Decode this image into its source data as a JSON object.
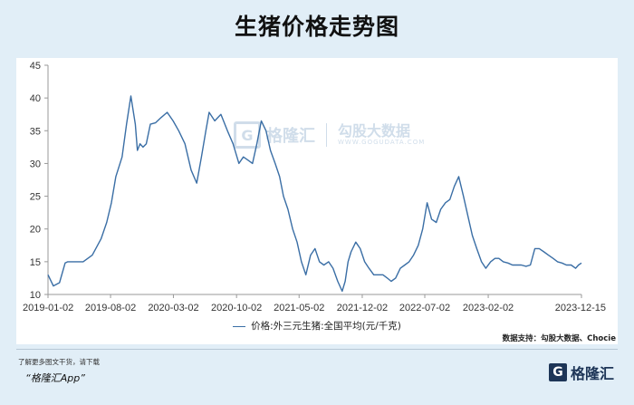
{
  "title": "生猪价格走势图",
  "watermark": {
    "brand": "格隆汇",
    "source_name": "勾股大数据",
    "source_url": "WWW.GOGUDATA.COM"
  },
  "legend_label": "价格:外三元生猪:全国平均(元/千克)",
  "source_note": "数据支持：勾股大数据、Chocie",
  "footer": {
    "line1": "了解更多图文干货，请下载",
    "line2": "“格隆汇App”",
    "logo_text": "格隆汇"
  },
  "colors": {
    "line": "#3a6ea5",
    "background": "#e1eef7",
    "panel": "#ffffff"
  },
  "chart_data": {
    "type": "line",
    "title": "生猪价格走势图",
    "xlabel": "",
    "ylabel": "",
    "x_ticks": [
      "2019-01-02",
      "2019-08-02",
      "2020-03-02",
      "2020-10-02",
      "2021-05-02",
      "2021-12-02",
      "2022-07-02",
      "2023-02-02",
      "2023-12-15"
    ],
    "y_ticks": [
      10,
      15,
      20,
      25,
      30,
      35,
      40,
      45
    ],
    "ylim": [
      10,
      45
    ],
    "grid": false,
    "series": [
      {
        "name": "价格:外三元生猪:全国平均(元/千克)",
        "x": [
          "2019-01-02",
          "2019-01-20",
          "2019-02-10",
          "2019-03-01",
          "2019-03-10",
          "2019-04-01",
          "2019-05-01",
          "2019-06-01",
          "2019-07-01",
          "2019-07-20",
          "2019-08-05",
          "2019-08-20",
          "2019-09-10",
          "2019-09-25",
          "2019-10-10",
          "2019-10-25",
          "2019-11-01",
          "2019-11-10",
          "2019-11-20",
          "2019-12-01",
          "2019-12-15",
          "2020-01-01",
          "2020-01-20",
          "2020-02-10",
          "2020-03-01",
          "2020-03-20",
          "2020-04-10",
          "2020-05-01",
          "2020-05-20",
          "2020-06-05",
          "2020-06-20",
          "2020-07-01",
          "2020-07-20",
          "2020-08-10",
          "2020-09-01",
          "2020-09-20",
          "2020-10-10",
          "2020-10-25",
          "2020-11-10",
          "2020-11-25",
          "2020-12-10",
          "2020-12-25",
          "2021-01-10",
          "2021-01-25",
          "2021-02-10",
          "2021-02-25",
          "2021-03-10",
          "2021-03-25",
          "2021-04-10",
          "2021-04-25",
          "2021-05-10",
          "2021-05-25",
          "2021-06-10",
          "2021-06-25",
          "2021-07-10",
          "2021-07-25",
          "2021-08-10",
          "2021-08-25",
          "2021-09-10",
          "2021-09-25",
          "2021-10-05",
          "2021-10-15",
          "2021-10-25",
          "2021-11-10",
          "2021-11-25",
          "2021-12-10",
          "2021-12-25",
          "2022-01-10",
          "2022-01-25",
          "2022-02-10",
          "2022-02-25",
          "2022-03-10",
          "2022-03-25",
          "2022-04-10",
          "2022-04-25",
          "2022-05-10",
          "2022-05-25",
          "2022-06-10",
          "2022-06-25",
          "2022-07-10",
          "2022-07-25",
          "2022-08-10",
          "2022-08-25",
          "2022-09-10",
          "2022-09-25",
          "2022-10-10",
          "2022-10-25",
          "2022-11-10",
          "2022-11-25",
          "2022-12-10",
          "2022-12-25",
          "2023-01-10",
          "2023-01-25",
          "2023-02-10",
          "2023-02-25",
          "2023-03-10",
          "2023-03-25",
          "2023-04-10",
          "2023-04-25",
          "2023-05-10",
          "2023-05-25",
          "2023-06-10",
          "2023-06-25",
          "2023-07-10",
          "2023-07-25",
          "2023-08-10",
          "2023-08-25",
          "2023-09-10",
          "2023-09-25",
          "2023-10-10",
          "2023-10-25",
          "2023-11-10",
          "2023-11-25",
          "2023-12-05",
          "2023-12-15"
        ],
        "values": [
          13.0,
          11.3,
          11.8,
          14.8,
          15.0,
          15.0,
          15.0,
          16.0,
          18.5,
          21.0,
          24.0,
          28.0,
          31.0,
          36.0,
          40.3,
          36.0,
          32.0,
          33.0,
          32.5,
          33.0,
          36.0,
          36.2,
          37.0,
          37.8,
          36.5,
          35.0,
          33.0,
          29.0,
          27.0,
          31.0,
          35.0,
          37.8,
          36.5,
          37.5,
          35.0,
          33.0,
          30.0,
          31.0,
          30.5,
          30.0,
          33.0,
          36.5,
          35.0,
          32.0,
          30.0,
          28.0,
          25.0,
          23.0,
          20.0,
          18.0,
          15.0,
          13.0,
          16.0,
          17.0,
          15.0,
          14.5,
          15.0,
          14.0,
          12.0,
          10.5,
          12.0,
          15.0,
          16.5,
          18.0,
          17.0,
          15.0,
          14.0,
          13.0,
          13.0,
          13.0,
          12.5,
          12.0,
          12.5,
          14.0,
          14.5,
          15.0,
          16.0,
          17.5,
          20.0,
          24.0,
          21.5,
          21.0,
          23.0,
          24.0,
          24.5,
          26.5,
          28.0,
          25.0,
          22.0,
          19.0,
          17.0,
          15.0,
          14.0,
          15.0,
          15.5,
          15.5,
          15.0,
          14.8,
          14.5,
          14.5,
          14.5,
          14.3,
          14.5,
          17.0,
          17.0,
          16.5,
          16.0,
          15.5,
          15.0,
          14.8,
          14.5,
          14.5,
          14.0,
          14.5,
          14.8
        ]
      }
    ]
  }
}
